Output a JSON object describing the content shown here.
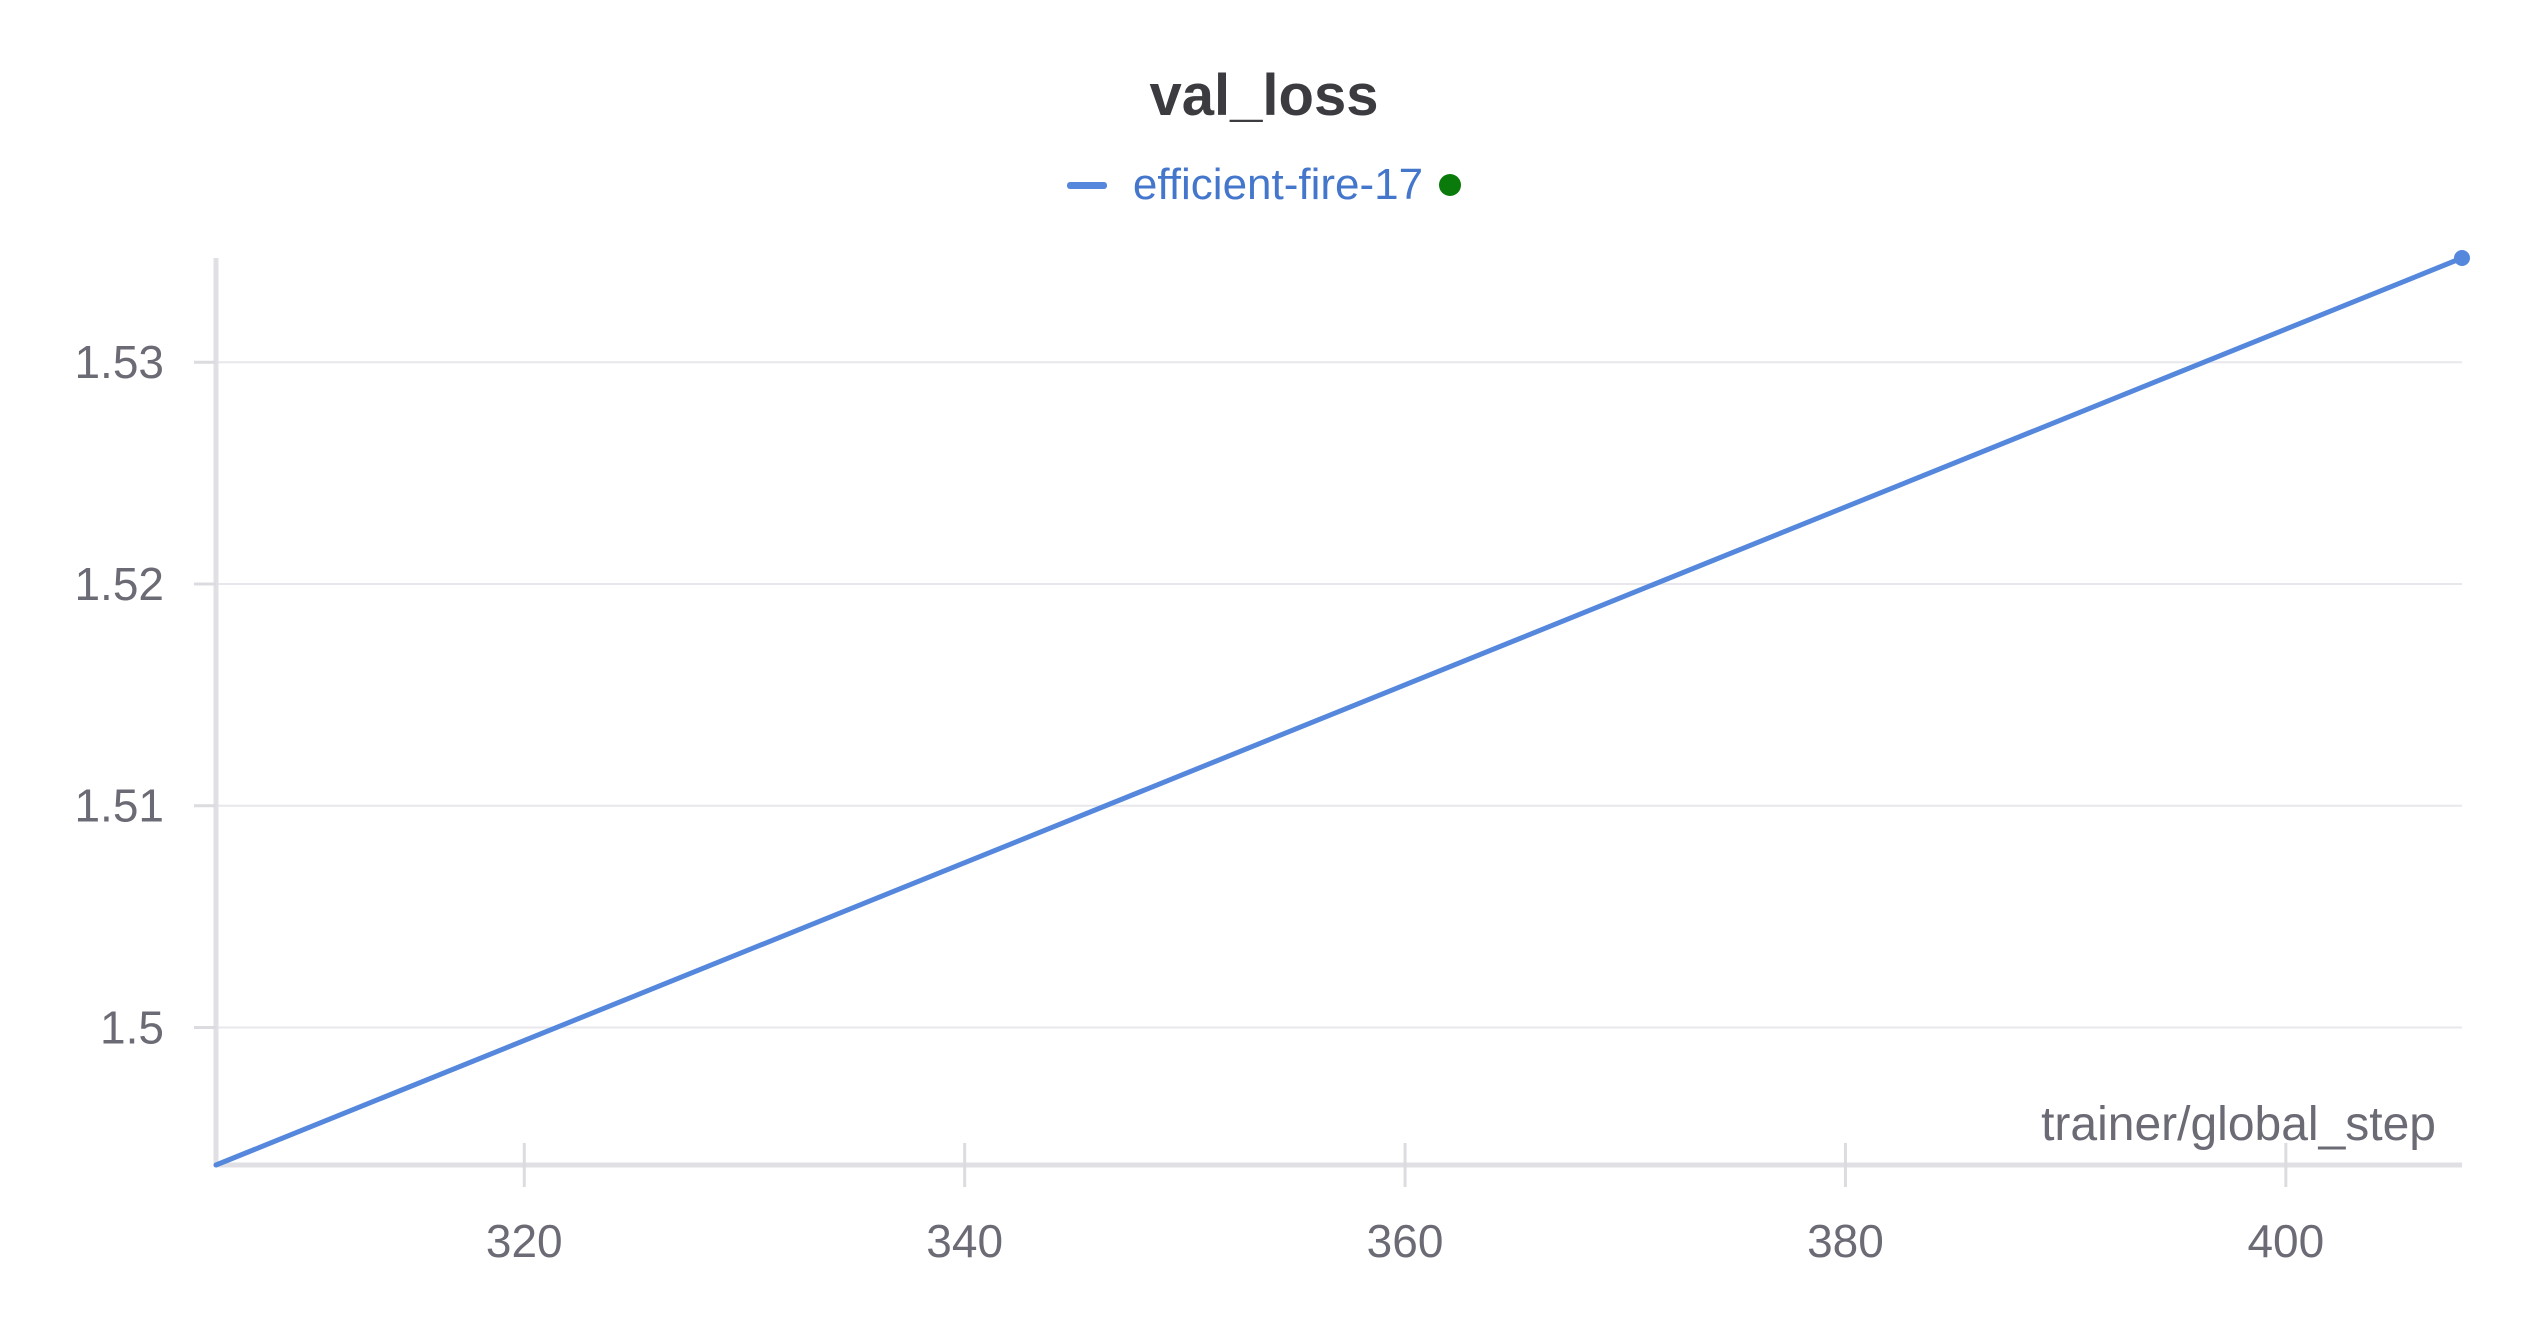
{
  "chart_data": {
    "type": "line",
    "title": "val_loss",
    "xlabel": "trainer/global_step",
    "ylabel": "",
    "xlim": [
      306,
      408
    ],
    "ylim": [
      1.4938,
      1.5347
    ],
    "x_ticks": [
      320,
      340,
      360,
      380,
      400
    ],
    "x_tick_labels": [
      "320",
      "340",
      "360",
      "380",
      "400"
    ],
    "y_ticks": [
      1.5,
      1.51,
      1.52,
      1.53
    ],
    "y_tick_labels": [
      "1.5",
      "1.51",
      "1.52",
      "1.53"
    ],
    "grid": true,
    "legend_position": "top-center",
    "series": [
      {
        "name": "efficient-fire-17",
        "color": "#5588dd",
        "status_color": "#0a7a0a",
        "x": [
          306,
          408
        ],
        "y": [
          1.4938,
          1.5347
        ]
      }
    ]
  }
}
